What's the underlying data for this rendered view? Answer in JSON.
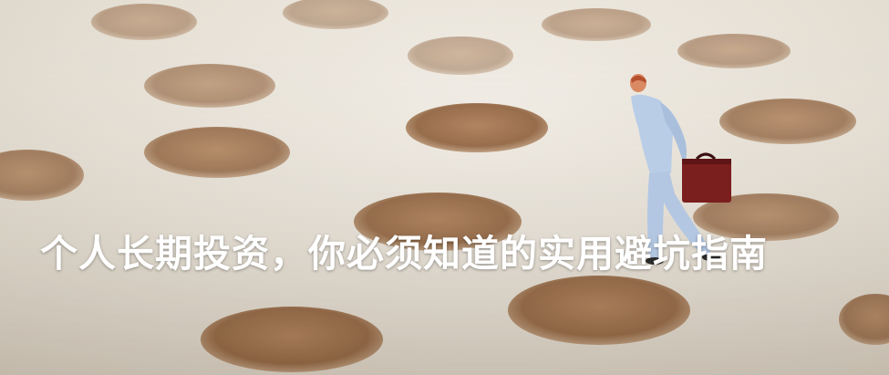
{
  "article": {
    "title": "个人长期投资，你必须知道的实用避坑指南"
  },
  "image": {
    "subject": "miniature-figure-on-perforated-surface",
    "icon": "holes-pattern"
  }
}
